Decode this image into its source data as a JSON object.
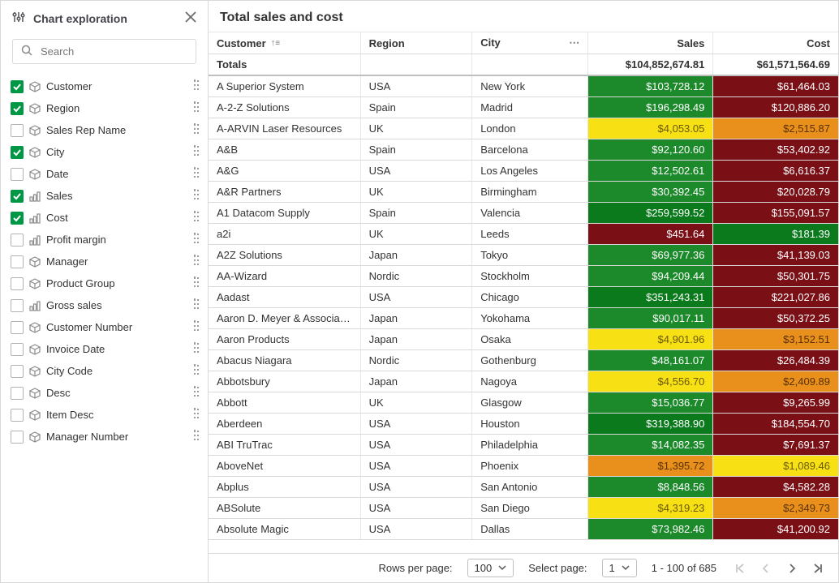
{
  "sidebar": {
    "title": "Chart exploration",
    "search_placeholder": "Search",
    "items": [
      {
        "label": "Customer",
        "checked": true,
        "kind": "dimension"
      },
      {
        "label": "Region",
        "checked": true,
        "kind": "dimension"
      },
      {
        "label": "Sales Rep Name",
        "checked": false,
        "kind": "dimension"
      },
      {
        "label": "City",
        "checked": true,
        "kind": "dimension"
      },
      {
        "label": "Date",
        "checked": false,
        "kind": "dimension"
      },
      {
        "label": "Sales",
        "checked": true,
        "kind": "measure"
      },
      {
        "label": "Cost",
        "checked": true,
        "kind": "measure"
      },
      {
        "label": "Profit margin",
        "checked": false,
        "kind": "measure"
      },
      {
        "label": "Manager",
        "checked": false,
        "kind": "dimension"
      },
      {
        "label": "Product Group",
        "checked": false,
        "kind": "dimension"
      },
      {
        "label": "Gross sales",
        "checked": false,
        "kind": "measure"
      },
      {
        "label": "Customer Number",
        "checked": false,
        "kind": "dimension"
      },
      {
        "label": "Invoice Date",
        "checked": false,
        "kind": "dimension"
      },
      {
        "label": "City Code",
        "checked": false,
        "kind": "dimension"
      },
      {
        "label": "Desc",
        "checked": false,
        "kind": "dimension"
      },
      {
        "label": "Item Desc",
        "checked": false,
        "kind": "dimension"
      },
      {
        "label": "Manager Number",
        "checked": false,
        "kind": "dimension"
      }
    ]
  },
  "chart": {
    "title": "Total sales and cost",
    "columns": {
      "customer": "Customer",
      "region": "Region",
      "city": "City",
      "sales": "Sales",
      "cost": "Cost"
    },
    "sort_column": "customer",
    "sort_direction": "asc",
    "header_fontsize": 13,
    "row_fontsize": 13,
    "grid_line_color": "#d9d9d9",
    "heat_colors": {
      "green_dark": "#0a7a1c",
      "green": "#1c8a2b",
      "green_mid": "#2a9a33",
      "red_dark": "#7a1016",
      "red": "#8b171d",
      "orange": "#e8901b",
      "yellow": "#f7e114"
    },
    "totals_label": "Totals",
    "totals": {
      "sales": "$104,852,674.81",
      "cost": "$61,571,564.69"
    },
    "rows": [
      {
        "customer": "A Superior System",
        "region": "USA",
        "city": "New York",
        "sales": "$103,728.12",
        "cost": "$61,464.03",
        "sales_class": "c-green",
        "cost_class": "c-red-dk"
      },
      {
        "customer": "A-2-Z Solutions",
        "region": "Spain",
        "city": "Madrid",
        "sales": "$196,298.49",
        "cost": "$120,886.20",
        "sales_class": "c-green",
        "cost_class": "c-red-dk"
      },
      {
        "customer": "A-ARVIN Laser Resources",
        "region": "UK",
        "city": "London",
        "sales": "$4,053.05",
        "cost": "$2,515.87",
        "sales_class": "c-yellow",
        "cost_class": "c-orange"
      },
      {
        "customer": "A&B",
        "region": "Spain",
        "city": "Barcelona",
        "sales": "$92,120.60",
        "cost": "$53,402.92",
        "sales_class": "c-green",
        "cost_class": "c-red-dk"
      },
      {
        "customer": "A&G",
        "region": "USA",
        "city": "Los Angeles",
        "sales": "$12,502.61",
        "cost": "$6,616.37",
        "sales_class": "c-green",
        "cost_class": "c-red-dk"
      },
      {
        "customer": "A&R Partners",
        "region": "UK",
        "city": "Birmingham",
        "sales": "$30,392.45",
        "cost": "$20,028.79",
        "sales_class": "c-green",
        "cost_class": "c-red-dk"
      },
      {
        "customer": "A1 Datacom Supply",
        "region": "Spain",
        "city": "Valencia",
        "sales": "$259,599.52",
        "cost": "$155,091.57",
        "sales_class": "c-green-dk",
        "cost_class": "c-red-dk"
      },
      {
        "customer": "a2i",
        "region": "UK",
        "city": "Leeds",
        "sales": "$451.64",
        "cost": "$181.39",
        "sales_class": "c-red-dk",
        "cost_class": "c-green-dk"
      },
      {
        "customer": "A2Z Solutions",
        "region": "Japan",
        "city": "Tokyo",
        "sales": "$69,977.36",
        "cost": "$41,139.03",
        "sales_class": "c-green",
        "cost_class": "c-red-dk"
      },
      {
        "customer": "AA-Wizard",
        "region": "Nordic",
        "city": "Stockholm",
        "sales": "$94,209.44",
        "cost": "$50,301.75",
        "sales_class": "c-green",
        "cost_class": "c-red-dk"
      },
      {
        "customer": "Aadast",
        "region": "USA",
        "city": "Chicago",
        "sales": "$351,243.31",
        "cost": "$221,027.86",
        "sales_class": "c-green-dk",
        "cost_class": "c-red-dk"
      },
      {
        "customer": "Aaron D. Meyer & Associates",
        "region": "Japan",
        "city": "Yokohama",
        "sales": "$90,017.11",
        "cost": "$50,372.25",
        "sales_class": "c-green",
        "cost_class": "c-red-dk"
      },
      {
        "customer": "Aaron Products",
        "region": "Japan",
        "city": "Osaka",
        "sales": "$4,901.96",
        "cost": "$3,152.51",
        "sales_class": "c-yellow",
        "cost_class": "c-orange"
      },
      {
        "customer": "Abacus Niagara",
        "region": "Nordic",
        "city": "Gothenburg",
        "sales": "$48,161.07",
        "cost": "$26,484.39",
        "sales_class": "c-green",
        "cost_class": "c-red-dk"
      },
      {
        "customer": "Abbotsbury",
        "region": "Japan",
        "city": "Nagoya",
        "sales": "$4,556.70",
        "cost": "$2,409.89",
        "sales_class": "c-yellow",
        "cost_class": "c-orange"
      },
      {
        "customer": "Abbott",
        "region": "UK",
        "city": "Glasgow",
        "sales": "$15,036.77",
        "cost": "$9,265.99",
        "sales_class": "c-green",
        "cost_class": "c-red-dk"
      },
      {
        "customer": "Aberdeen",
        "region": "USA",
        "city": "Houston",
        "sales": "$319,388.90",
        "cost": "$184,554.70",
        "sales_class": "c-green-dk",
        "cost_class": "c-red-dk"
      },
      {
        "customer": "ABI TruTrac",
        "region": "USA",
        "city": "Philadelphia",
        "sales": "$14,082.35",
        "cost": "$7,691.37",
        "sales_class": "c-green",
        "cost_class": "c-red-dk"
      },
      {
        "customer": "AboveNet",
        "region": "USA",
        "city": "Phoenix",
        "sales": "$1,395.72",
        "cost": "$1,089.46",
        "sales_class": "c-orange",
        "cost_class": "c-yellow"
      },
      {
        "customer": "Abplus",
        "region": "USA",
        "city": "San Antonio",
        "sales": "$8,848.56",
        "cost": "$4,582.28",
        "sales_class": "c-green",
        "cost_class": "c-red-dk"
      },
      {
        "customer": "ABSolute",
        "region": "USA",
        "city": "San Diego",
        "sales": "$4,319.23",
        "cost": "$2,349.73",
        "sales_class": "c-yellow",
        "cost_class": "c-orange"
      },
      {
        "customer": "Absolute Magic",
        "region": "USA",
        "city": "Dallas",
        "sales": "$73,982.46",
        "cost": "$41,200.92",
        "sales_class": "c-green",
        "cost_class": "c-red-dk"
      }
    ]
  },
  "footer": {
    "rows_per_page_label": "Rows per page:",
    "rows_per_page_value": "100",
    "select_page_label": "Select page:",
    "select_page_value": "1",
    "range_text": "1 - 100 of 685"
  }
}
